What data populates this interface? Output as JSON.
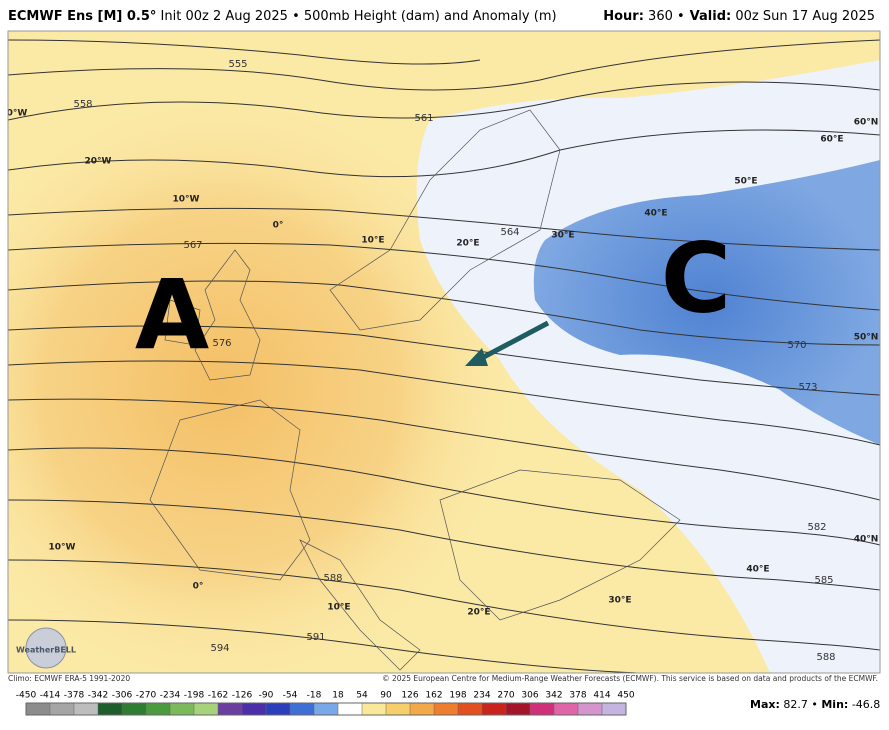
{
  "header": {
    "model": "ECMWF Ens [M] 0.5°",
    "description": "Init 00z 2 Aug 2025 • 500mb Height (dam) and Anomaly (m)",
    "hour_label": "Hour:",
    "hour": "360 •",
    "valid_label": "Valid:",
    "valid": "00z Sun 17 Aug 2025"
  },
  "map": {
    "markers": [
      "A",
      "C"
    ],
    "contour_labels": [
      "555",
      "558",
      "561",
      "564",
      "567",
      "576",
      "570",
      "573",
      "582",
      "585",
      "588",
      "588",
      "591",
      "594"
    ],
    "grid_labels": [
      "0°W",
      "20°W",
      "10°W",
      "0°",
      "10°E",
      "20°E",
      "30°E",
      "40°E",
      "50°E",
      "60°E",
      "60°N",
      "50°N",
      "40°N",
      "10°W",
      "0°",
      "10°E",
      "20°E",
      "30°E",
      "40°E"
    ],
    "logo": "WeatherBELL"
  },
  "footer": {
    "climo": "Climo: ECMWF ERA-5 1991-2020",
    "copyright": "© 2025 European Centre for Medium-Range Weather Forecasts (ECMWF). This service is based on data and products of the ECMWF.",
    "max_label": "Max:",
    "max": 82.7,
    "min_label": "Min:",
    "min": -46.8
  },
  "colorbar": {
    "ticks": [
      -450,
      -414,
      -378,
      -342,
      -306,
      -270,
      -234,
      -198,
      -162,
      -126,
      -90,
      -54,
      -18,
      18,
      54,
      90,
      126,
      162,
      198,
      234,
      270,
      306,
      342,
      378,
      414,
      450
    ],
    "colors": [
      "#8c8c8c",
      "#a5a5a5",
      "#bdbdbd",
      "#1d5e2c",
      "#2e7d32",
      "#4c9a40",
      "#7cb95a",
      "#a7d27c",
      "#6b3fa0",
      "#4b2fa8",
      "#2b3fbd",
      "#3e6fd6",
      "#78a8e8",
      "#ffffff",
      "#f9e79a",
      "#f6cf6a",
      "#f3a84a",
      "#ef7d2e",
      "#e2501f",
      "#c8241b",
      "#a5152a",
      "#d0307a",
      "#e064a8",
      "#d494cc",
      "#c4b4e0"
    ]
  }
}
